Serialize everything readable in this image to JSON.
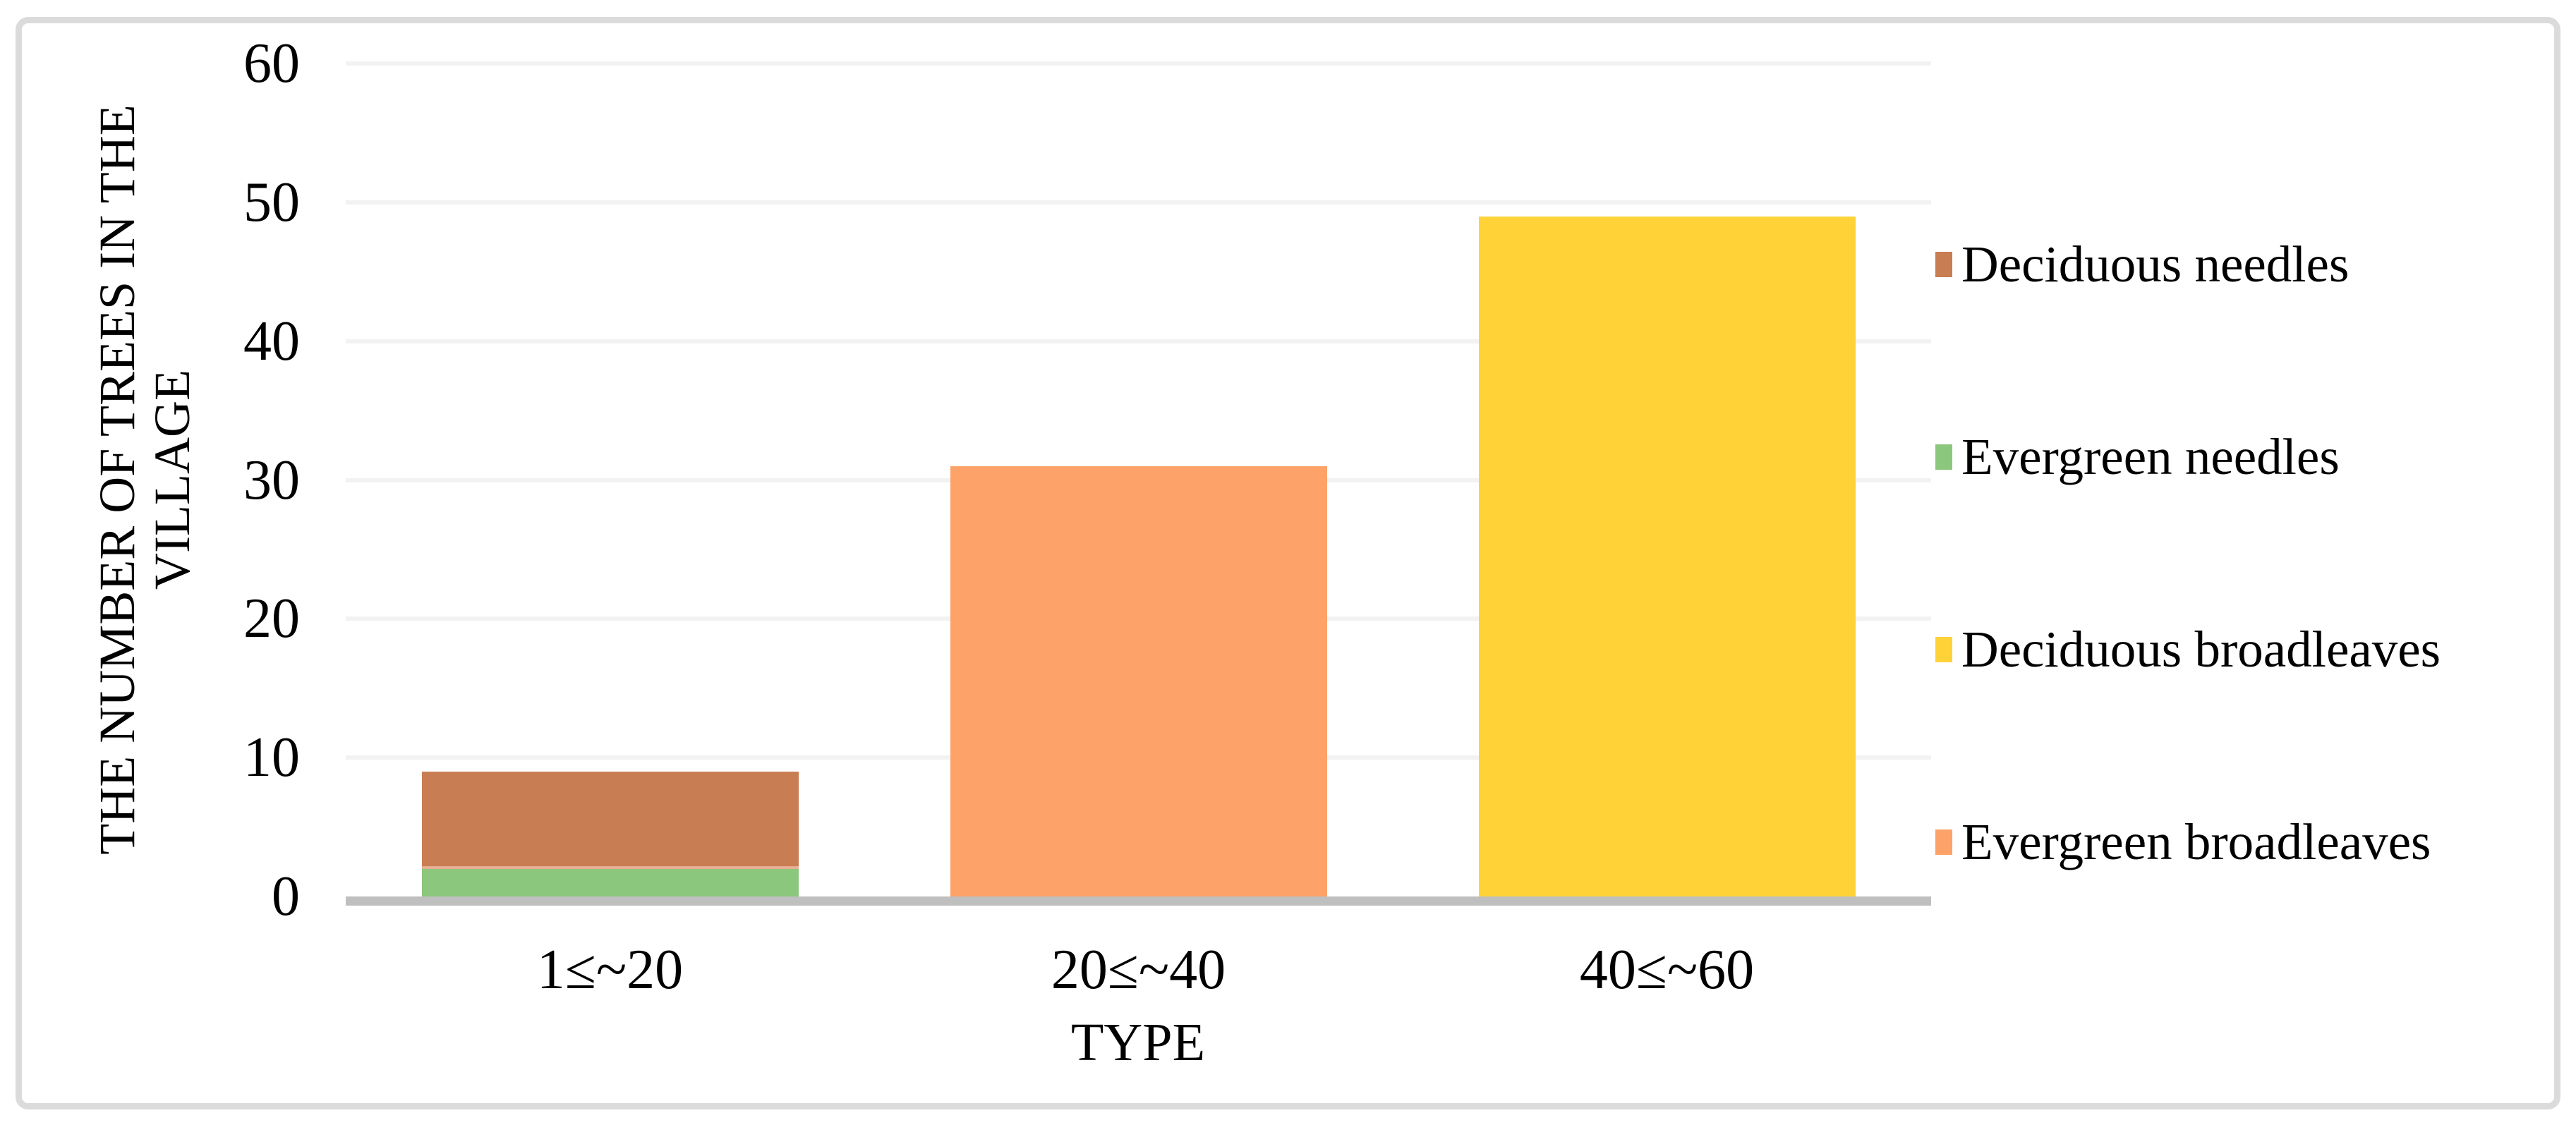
{
  "chart_data": {
    "type": "bar",
    "stacked": true,
    "title": "",
    "xlabel": "TYPE",
    "ylabel": "THE NUMBER OF TREES IN THE VILLAGE",
    "ylabel_lines": [
      "THE NUMBER OF TREES IN THE",
      "VILLAGE"
    ],
    "categories": [
      "1≤~20",
      "20≤~40",
      "40≤~60"
    ],
    "series": [
      {
        "name": "Deciduous needles",
        "color": "#C87D52",
        "values": [
          7,
          0,
          0
        ]
      },
      {
        "name": "Evergreen needles",
        "color": "#8BC77D",
        "values": [
          2,
          0,
          0
        ]
      },
      {
        "name": "Deciduous broadleaves",
        "color": "#FFD237",
        "values": [
          0,
          0,
          49
        ]
      },
      {
        "name": "Evergreen broadleaves",
        "color": "#FDA269",
        "values": [
          0,
          31,
          0
        ]
      }
    ],
    "stack_order": [
      "Evergreen needles",
      "Deciduous needles",
      "Deciduous broadleaves",
      "Evergreen broadleaves"
    ],
    "ylim": [
      0,
      60
    ],
    "yticks": [
      0,
      10,
      20,
      30,
      40,
      50,
      60
    ],
    "grid": true,
    "legend_position": "right",
    "colors": {
      "gridline": "#F2F2F2",
      "axis_line": "#BFBFBF",
      "frame_border": "#DBDBDB",
      "text": "#000000",
      "background": "#FFFFFF",
      "segment_separator": "#E8AF94"
    }
  },
  "legend": {
    "items": [
      {
        "label": "Deciduous needles",
        "color": "#C87D52"
      },
      {
        "label": "Evergreen needles",
        "color": "#8BC77D"
      },
      {
        "label": "Deciduous broadleaves",
        "color": "#FFD237"
      },
      {
        "label": "Evergreen broadleaves",
        "color": "#FDA269"
      }
    ]
  }
}
